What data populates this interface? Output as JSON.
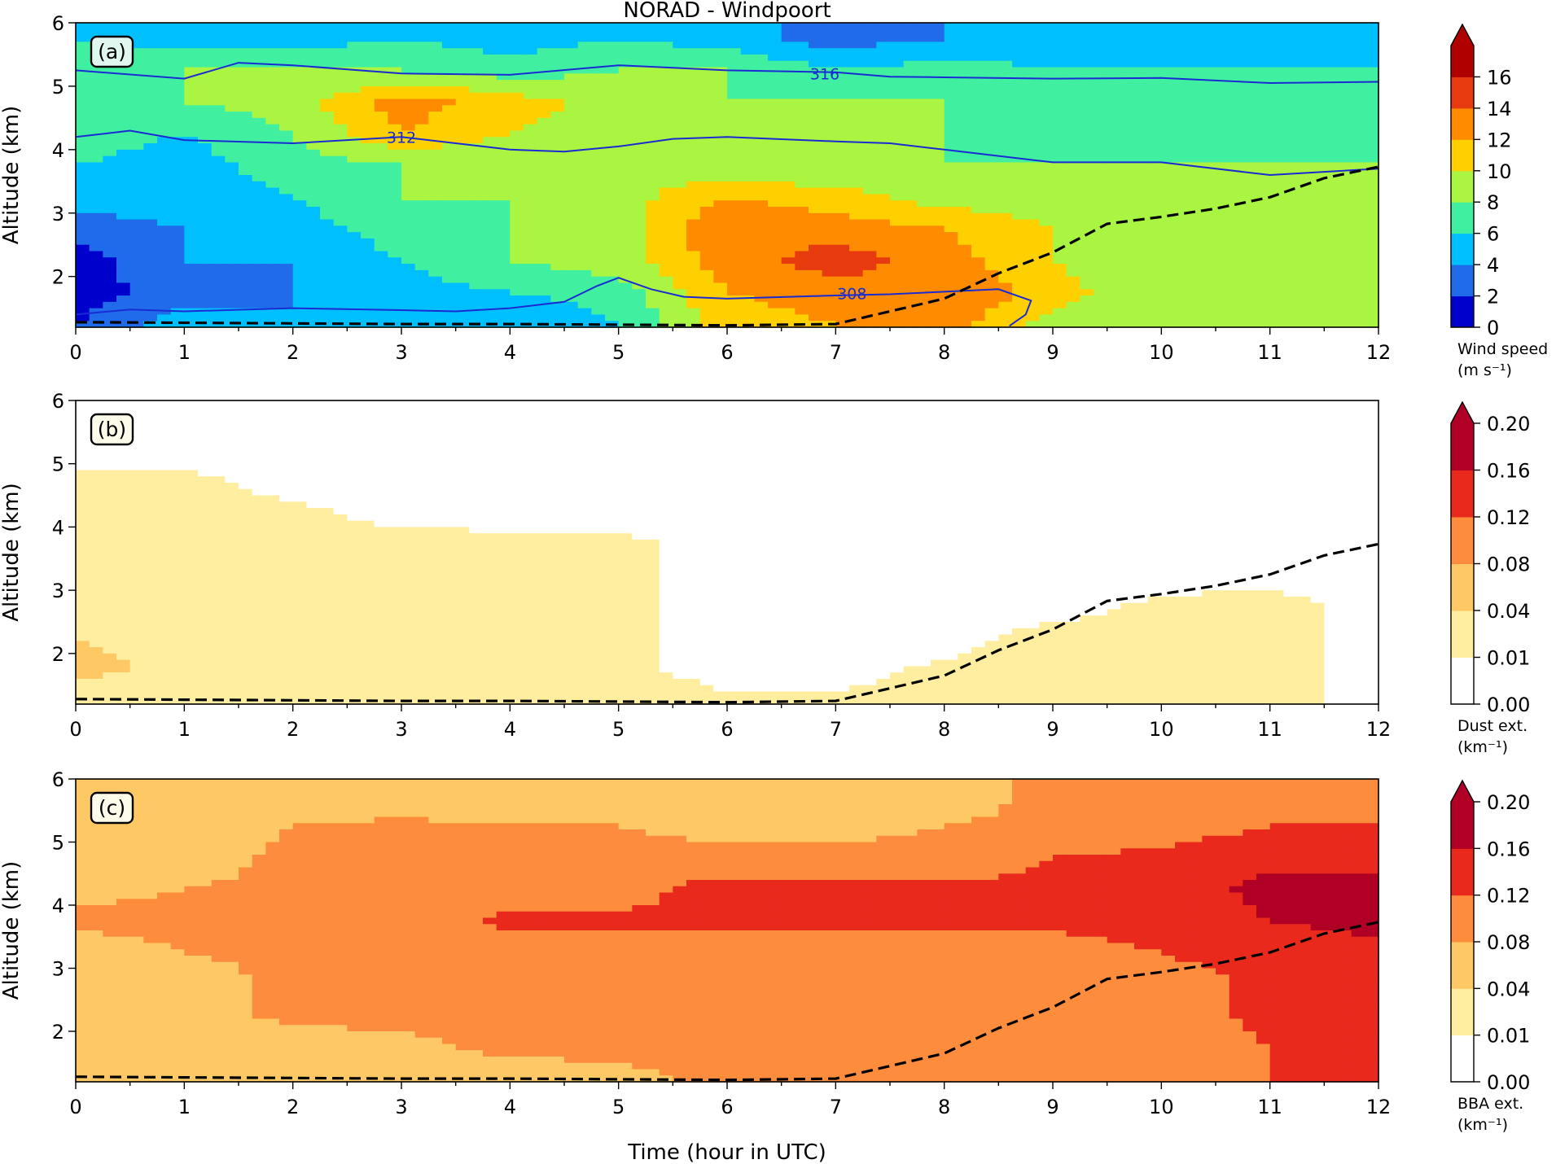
{
  "figure": {
    "title": "NORAD - Windpoort",
    "xlabel": "Time (hour in UTC)"
  },
  "chart_data": [
    {
      "type": "heatmap",
      "panel_label": "(a)",
      "ylabel": "Altitude (km)",
      "xlim": [
        0,
        12
      ],
      "ylim": [
        1.2,
        6
      ],
      "xticks": [
        0,
        1,
        2,
        3,
        4,
        5,
        6,
        7,
        8,
        9,
        10,
        11,
        12
      ],
      "yticks": [
        2,
        3,
        4,
        5,
        6
      ],
      "colorbar": {
        "label_line1": "Wind speed",
        "label_line2": "(m s⁻¹)",
        "levels": [
          0,
          2,
          4,
          6,
          8,
          10,
          12,
          14,
          16
        ],
        "colors": [
          "#0000cd",
          "#1f6bea",
          "#00bfff",
          "#40f0a0",
          "#aaf542",
          "#ffd000",
          "#ff8c00",
          "#e83a0f",
          "#b00000"
        ],
        "tick_labels": [
          "0",
          "2",
          "4",
          "6",
          "8",
          "10",
          "12",
          "14",
          "16"
        ],
        "extend": "max"
      },
      "field": {
        "x": [
          0,
          1,
          2,
          3,
          4,
          5,
          6,
          7,
          8,
          9,
          10,
          11,
          12
        ],
        "y": [
          1.25,
          1.75,
          2.25,
          2.75,
          3.25,
          3.75,
          4.25,
          4.75,
          5.25,
          5.75
        ],
        "z": [
          [
            2,
            5,
            4,
            5,
            4,
            6,
            11,
            12,
            13,
            9,
            8,
            8,
            8
          ],
          [
            1,
            3,
            4,
            5,
            6,
            7,
            12,
            13,
            14,
            11,
            8,
            8,
            8
          ],
          [
            1,
            4,
            4,
            6,
            8,
            9,
            13,
            15,
            13,
            10,
            8,
            8,
            8
          ],
          [
            3,
            4,
            5,
            7,
            8,
            9,
            14,
            13,
            12,
            10,
            9,
            8,
            8
          ],
          [
            5,
            5,
            6,
            8,
            8,
            9,
            12,
            11,
            9,
            9,
            8,
            8,
            8
          ],
          [
            6,
            5,
            7,
            8,
            8,
            10,
            8,
            8,
            8,
            8,
            8,
            8,
            8
          ],
          [
            7,
            6,
            8,
            12,
            10,
            9,
            8,
            8,
            8,
            7,
            8,
            7,
            7
          ],
          [
            7,
            8,
            9,
            13,
            11,
            9,
            8,
            8,
            8,
            7,
            7,
            7,
            7
          ],
          [
            7,
            8,
            8,
            8,
            7,
            8,
            8,
            6,
            7,
            6,
            6,
            6,
            6
          ],
          [
            6,
            5,
            5,
            6,
            5,
            6,
            5,
            3,
            4,
            5,
            5,
            4,
            5
          ]
        ]
      },
      "contours": [
        {
          "label": "316",
          "label_at": [
            6.9,
            5.2
          ],
          "x": [
            0,
            1,
            1.5,
            2,
            3,
            4,
            5,
            6,
            7,
            7.5,
            8,
            9,
            10,
            11,
            12
          ],
          "y": [
            5.25,
            5.12,
            5.37,
            5.33,
            5.2,
            5.18,
            5.33,
            5.25,
            5.22,
            5.15,
            5.14,
            5.12,
            5.13,
            5.05,
            5.07
          ]
        },
        {
          "label": "312",
          "label_at": [
            3.0,
            4.2
          ],
          "x": [
            0,
            0.5,
            1,
            2,
            3,
            4,
            4.5,
            5,
            5.5,
            6,
            7,
            7.5,
            8,
            9,
            10,
            11,
            12
          ],
          "y": [
            4.2,
            4.3,
            4.15,
            4.1,
            4.2,
            4.0,
            3.97,
            4.05,
            4.17,
            4.2,
            4.13,
            4.1,
            4.0,
            3.8,
            3.8,
            3.6,
            3.7
          ]
        },
        {
          "label": "308",
          "label_at": [
            7.15,
            1.73
          ],
          "x": [
            0,
            0.5,
            1,
            2,
            3,
            3.5,
            4,
            4.5,
            4.8,
            5,
            5.3,
            5.6,
            6,
            7,
            7.5,
            8,
            8.5,
            8.8,
            8.75,
            8.6
          ],
          "y": [
            1.4,
            1.48,
            1.45,
            1.5,
            1.47,
            1.45,
            1.5,
            1.6,
            1.85,
            1.98,
            1.8,
            1.68,
            1.65,
            1.7,
            1.72,
            1.76,
            1.8,
            1.62,
            1.4,
            1.22
          ]
        }
      ],
      "dashed_line": {
        "x": [
          0,
          1,
          2,
          3,
          4,
          5,
          6,
          7,
          7.5,
          8,
          8.5,
          9,
          9.5,
          10,
          10.5,
          11,
          11.5,
          12
        ],
        "y": [
          1.28,
          1.27,
          1.26,
          1.25,
          1.25,
          1.24,
          1.23,
          1.25,
          1.45,
          1.65,
          2.05,
          2.38,
          2.83,
          2.94,
          3.07,
          3.25,
          3.55,
          3.73
        ]
      }
    },
    {
      "type": "heatmap",
      "panel_label": "(b)",
      "ylabel": "Altitude (km)",
      "xlim": [
        0,
        12
      ],
      "ylim": [
        1.2,
        6
      ],
      "xticks": [
        0,
        1,
        2,
        3,
        4,
        5,
        6,
        7,
        8,
        9,
        10,
        11,
        12
      ],
      "yticks": [
        2,
        3,
        4,
        5,
        6
      ],
      "colorbar": {
        "label_line1": "Dust ext.",
        "label_line2": "(km⁻¹)",
        "levels": [
          0.0,
          0.01,
          0.04,
          0.08,
          0.12,
          0.16,
          0.2
        ],
        "colors": [
          "#ffffff",
          "#ffeda0",
          "#fec965",
          "#fd8d3c",
          "#e8291c",
          "#b10026"
        ],
        "tick_labels": [
          "0.00",
          "0.01",
          "0.04",
          "0.08",
          "0.12",
          "0.16",
          "0.20"
        ],
        "extend": "max"
      },
      "field": {
        "x": [
          0,
          1,
          2,
          3,
          4,
          5,
          6,
          7,
          8,
          9,
          10,
          11,
          12
        ],
        "y": [
          1.25,
          1.75,
          2.25,
          2.75,
          3.25,
          3.75,
          4.25,
          4.75,
          5.25,
          5.75
        ],
        "z": [
          [
            0.02,
            0.02,
            0.02,
            0.03,
            0.03,
            0.03,
            0.015,
            0.015,
            0.02,
            0.02,
            0.02,
            0.02,
            0
          ],
          [
            0.05,
            0.03,
            0.02,
            0.02,
            0.02,
            0.015,
            0,
            0,
            0.015,
            0.02,
            0.02,
            0.02,
            0
          ],
          [
            0.04,
            0.03,
            0.02,
            0.02,
            0.02,
            0.015,
            0,
            0,
            0,
            0.02,
            0.02,
            0.02,
            0
          ],
          [
            0.02,
            0.02,
            0.02,
            0.02,
            0.02,
            0.015,
            0,
            0,
            0,
            0,
            0.015,
            0.02,
            0
          ],
          [
            0.02,
            0.02,
            0.02,
            0.02,
            0.02,
            0.015,
            0,
            0,
            0,
            0,
            0,
            0,
            0
          ],
          [
            0.02,
            0.02,
            0.02,
            0.02,
            0.015,
            0.015,
            0,
            0,
            0,
            0,
            0,
            0,
            0
          ],
          [
            0.02,
            0.02,
            0.015,
            0,
            0,
            0,
            0,
            0,
            0,
            0,
            0,
            0,
            0
          ],
          [
            0.015,
            0.015,
            0,
            0,
            0,
            0,
            0,
            0,
            0,
            0,
            0,
            0,
            0
          ],
          [
            0,
            0,
            0,
            0,
            0,
            0,
            0,
            0,
            0,
            0,
            0,
            0,
            0
          ],
          [
            0,
            0,
            0,
            0,
            0,
            0,
            0,
            0,
            0,
            0,
            0,
            0,
            0
          ]
        ]
      },
      "dashed_line": {
        "x": [
          0,
          1,
          2,
          3,
          4,
          5,
          6,
          7,
          7.5,
          8,
          8.5,
          9,
          9.5,
          10,
          10.5,
          11,
          11.5,
          12
        ],
        "y": [
          1.28,
          1.27,
          1.26,
          1.25,
          1.25,
          1.24,
          1.23,
          1.25,
          1.45,
          1.65,
          2.05,
          2.38,
          2.83,
          2.94,
          3.07,
          3.25,
          3.55,
          3.73
        ]
      }
    },
    {
      "type": "heatmap",
      "panel_label": "(c)",
      "ylabel": "Altitude (km)",
      "xlim": [
        0,
        12
      ],
      "ylim": [
        1.2,
        6
      ],
      "xticks": [
        0,
        1,
        2,
        3,
        4,
        5,
        6,
        7,
        8,
        9,
        10,
        11,
        12
      ],
      "yticks": [
        2,
        3,
        4,
        5,
        6
      ],
      "colorbar": {
        "label_line1": "BBA ext.",
        "label_line2": "(km⁻¹)",
        "levels": [
          0.0,
          0.01,
          0.04,
          0.08,
          0.12,
          0.16,
          0.2
        ],
        "colors": [
          "#ffffff",
          "#ffeda0",
          "#fec965",
          "#fd8d3c",
          "#e8291c",
          "#b10026"
        ],
        "tick_labels": [
          "0.00",
          "0.01",
          "0.04",
          "0.08",
          "0.12",
          "0.16",
          "0.20"
        ],
        "extend": "max"
      },
      "field": {
        "x": [
          0,
          1,
          2,
          3,
          4,
          5,
          6,
          7,
          8,
          9,
          10,
          11,
          12
        ],
        "y": [
          1.25,
          1.75,
          2.25,
          2.75,
          3.25,
          3.75,
          4.25,
          4.75,
          5.25,
          5.75
        ],
        "z": [
          [
            0.05,
            0.05,
            0.05,
            0.06,
            0.06,
            0.07,
            0.09,
            0.09,
            0.09,
            0.09,
            0.09,
            0.12,
            0.13
          ],
          [
            0.05,
            0.05,
            0.06,
            0.07,
            0.09,
            0.09,
            0.09,
            0.09,
            0.09,
            0.09,
            0.09,
            0.12,
            0.14
          ],
          [
            0.05,
            0.06,
            0.09,
            0.09,
            0.09,
            0.09,
            0.09,
            0.09,
            0.09,
            0.09,
            0.1,
            0.13,
            0.14
          ],
          [
            0.06,
            0.06,
            0.09,
            0.09,
            0.09,
            0.09,
            0.09,
            0.09,
            0.09,
            0.09,
            0.1,
            0.13,
            0.14
          ],
          [
            0.06,
            0.08,
            0.09,
            0.09,
            0.09,
            0.09,
            0.09,
            0.09,
            0.1,
            0.1,
            0.12,
            0.14,
            0.15
          ],
          [
            0.09,
            0.09,
            0.09,
            0.09,
            0.13,
            0.13,
            0.13,
            0.13,
            0.13,
            0.13,
            0.14,
            0.16,
            0.17
          ],
          [
            0.07,
            0.08,
            0.09,
            0.09,
            0.1,
            0.1,
            0.14,
            0.13,
            0.13,
            0.13,
            0.14,
            0.17,
            0.17
          ],
          [
            0.05,
            0.06,
            0.09,
            0.09,
            0.09,
            0.09,
            0.09,
            0.09,
            0.09,
            0.12,
            0.13,
            0.15,
            0.15
          ],
          [
            0.05,
            0.06,
            0.08,
            0.09,
            0.08,
            0.08,
            0.07,
            0.07,
            0.08,
            0.09,
            0.1,
            0.12,
            0.12
          ],
          [
            0.05,
            0.05,
            0.05,
            0.05,
            0.05,
            0.05,
            0.05,
            0.05,
            0.06,
            0.09,
            0.09,
            0.09,
            0.09
          ]
        ]
      },
      "dashed_line": {
        "x": [
          0,
          1,
          2,
          3,
          4,
          5,
          6,
          7,
          7.5,
          8,
          8.5,
          9,
          9.5,
          10,
          10.5,
          11,
          11.5,
          12
        ],
        "y": [
          1.28,
          1.27,
          1.26,
          1.25,
          1.25,
          1.24,
          1.23,
          1.25,
          1.45,
          1.65,
          2.05,
          2.38,
          2.83,
          2.94,
          3.07,
          3.25,
          3.55,
          3.73
        ]
      }
    }
  ]
}
